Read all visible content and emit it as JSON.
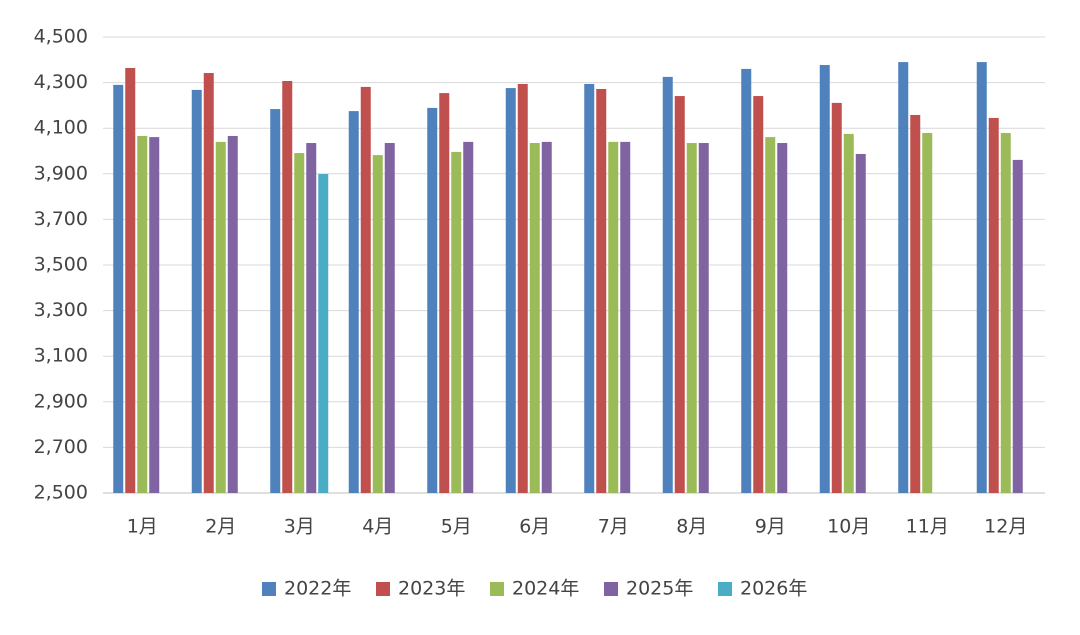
{
  "chart_data": {
    "type": "bar",
    "categories": [
      "1月",
      "2月",
      "3月",
      "4月",
      "5月",
      "6月",
      "7月",
      "8月",
      "9月",
      "10月",
      "11月",
      "12月"
    ],
    "series": [
      {
        "name": "2022年",
        "color": "#4f81bd",
        "values": [
          4290,
          4268,
          4184,
          4175,
          4189,
          4276,
          4294,
          4325,
          4360,
          4377,
          4390,
          4390
        ]
      },
      {
        "name": "2023年",
        "color": "#c0504d",
        "values": [
          4364,
          4342,
          4307,
          4281,
          4254,
          4294,
          4272,
          4241,
          4241,
          4211,
          4158,
          4145
        ]
      },
      {
        "name": "2024年",
        "color": "#9bbb59",
        "values": [
          4066,
          4040,
          3991,
          3982,
          3996,
          4035,
          4040,
          4035,
          4061,
          4075,
          4079,
          4079
        ]
      },
      {
        "name": "2025年",
        "color": "#8064a2",
        "values": [
          4061,
          4066,
          4035,
          4035,
          4040,
          4040,
          4040,
          4035,
          4035,
          3987,
          null,
          3961
        ]
      },
      {
        "name": "2026年",
        "color": "#4bacc6",
        "values": [
          null,
          null,
          3899,
          null,
          null,
          null,
          null,
          null,
          null,
          null,
          null,
          null
        ]
      }
    ],
    "ylim": [
      2500,
      4500
    ],
    "yticks": [
      {
        "value": 2500,
        "label": "2,500"
      },
      {
        "value": 2700,
        "label": "2,700"
      },
      {
        "value": 2900,
        "label": "2,900"
      },
      {
        "value": 3100,
        "label": "3,100"
      },
      {
        "value": 3300,
        "label": "3,300"
      },
      {
        "value": 3500,
        "label": "3,500"
      },
      {
        "value": 3700,
        "label": "3,700"
      },
      {
        "value": 3900,
        "label": "3,900"
      },
      {
        "value": 4100,
        "label": "4,100"
      },
      {
        "value": 4300,
        "label": "4,300"
      },
      {
        "value": 4500,
        "label": "4,500"
      }
    ],
    "grid": true,
    "legend": "bottom"
  }
}
